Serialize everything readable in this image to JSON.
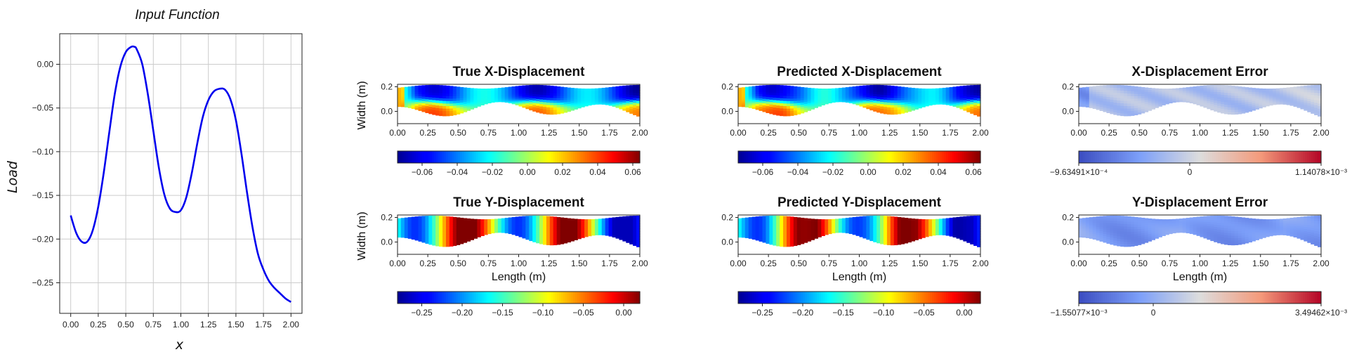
{
  "chart_data": [
    {
      "type": "line",
      "title": "Input Function",
      "xlabel": "x",
      "ylabel": "Load",
      "xlim": [
        -0.1,
        2.1
      ],
      "ylim": [
        -0.285,
        0.035
      ],
      "grid": true,
      "color": "#0000ee",
      "xticks": [
        0.0,
        0.25,
        0.5,
        0.75,
        1.0,
        1.25,
        1.5,
        1.75,
        2.0
      ],
      "xtick_labels": [
        "0.00",
        "0.25",
        "0.50",
        "0.75",
        "1.00",
        "1.25",
        "1.50",
        "1.75",
        "2.00"
      ],
      "yticks": [
        0.0,
        -0.05,
        -0.1,
        -0.15,
        -0.2,
        -0.25
      ],
      "ytick_labels": [
        "0.00",
        "−0.05",
        "−0.10",
        "−0.15",
        "−0.20",
        "−0.25"
      ],
      "series": [
        {
          "x": [
            0.0,
            0.05,
            0.1,
            0.15,
            0.2,
            0.25,
            0.3,
            0.35,
            0.4,
            0.45,
            0.5,
            0.55,
            0.58,
            0.6,
            0.65,
            0.7,
            0.75,
            0.8,
            0.85,
            0.9,
            0.95,
            1.0,
            1.05,
            1.1,
            1.15,
            1.2,
            1.25,
            1.3,
            1.35,
            1.4,
            1.45,
            1.5,
            1.55,
            1.6,
            1.65,
            1.7,
            1.75,
            1.8,
            1.85,
            1.9,
            1.95,
            2.0
          ],
          "y": [
            -0.173,
            -0.193,
            -0.203,
            -0.203,
            -0.19,
            -0.163,
            -0.124,
            -0.078,
            -0.034,
            -0.003,
            0.014,
            0.02,
            0.02,
            0.017,
            0.0,
            -0.034,
            -0.076,
            -0.118,
            -0.149,
            -0.165,
            -0.169,
            -0.167,
            -0.152,
            -0.124,
            -0.09,
            -0.06,
            -0.041,
            -0.031,
            -0.028,
            -0.029,
            -0.04,
            -0.064,
            -0.102,
            -0.146,
            -0.186,
            -0.217,
            -0.235,
            -0.248,
            -0.256,
            -0.262,
            -0.268,
            -0.272
          ]
        }
      ]
    },
    {
      "type": "heatmap",
      "title": "True X-Displacement",
      "ylabel": "Width (m)",
      "xlabel": "",
      "xlim": [
        0,
        2
      ],
      "ylim": [
        -0.1,
        0.22
      ],
      "colormap": "jet",
      "colorbar": {
        "range": [
          -0.074,
          0.064
        ],
        "ticks": [
          -0.06,
          -0.04,
          -0.02,
          0.0,
          0.02,
          0.04,
          0.06
        ],
        "tick_labels": [
          "−0.06",
          "−0.04",
          "−0.02",
          "0.00",
          "0.02",
          "0.04",
          "0.06"
        ]
      }
    },
    {
      "type": "heatmap",
      "title": "Predicted X-Displacement",
      "ylabel": "",
      "xlabel": "",
      "xlim": [
        0,
        2
      ],
      "ylim": [
        -0.1,
        0.22
      ],
      "colormap": "jet",
      "colorbar": {
        "range": [
          -0.074,
          0.064
        ],
        "ticks": [
          -0.06,
          -0.04,
          -0.02,
          0.0,
          0.02,
          0.04,
          0.06
        ],
        "tick_labels": [
          "−0.06",
          "−0.04",
          "−0.02",
          "0.00",
          "0.02",
          "0.04",
          "0.06"
        ]
      }
    },
    {
      "type": "heatmap",
      "title": "X-Displacement Error",
      "ylabel": "",
      "xlabel": "",
      "xlim": [
        0,
        2
      ],
      "ylim": [
        -0.1,
        0.22
      ],
      "colormap": "coolwarm",
      "colorbar": {
        "range": [
          -0.000963491,
          0.00114078
        ],
        "ticks": [
          -0.000963491,
          0,
          0.00114078
        ],
        "tick_labels": [
          "−9.63491×10⁻⁴",
          "0",
          "1.14078×10⁻³"
        ]
      }
    },
    {
      "type": "heatmap",
      "title": "True Y-Displacement",
      "ylabel": "Width (m)",
      "xlabel": "Length (m)",
      "xlim": [
        0,
        2
      ],
      "ylim": [
        -0.1,
        0.22
      ],
      "colormap": "jet",
      "colorbar": {
        "range": [
          -0.28,
          0.02
        ],
        "ticks": [
          -0.25,
          -0.2,
          -0.15,
          -0.1,
          -0.05,
          0.0
        ],
        "tick_labels": [
          "−0.25",
          "−0.20",
          "−0.15",
          "−0.10",
          "−0.05",
          "0.00"
        ]
      }
    },
    {
      "type": "heatmap",
      "title": "Predicted Y-Displacement",
      "ylabel": "",
      "xlabel": "Length (m)",
      "xlim": [
        0,
        2
      ],
      "ylim": [
        -0.1,
        0.22
      ],
      "colormap": "jet",
      "colorbar": {
        "range": [
          -0.28,
          0.02
        ],
        "ticks": [
          -0.25,
          -0.2,
          -0.15,
          -0.1,
          -0.05,
          0.0
        ],
        "tick_labels": [
          "−0.25",
          "−0.20",
          "−0.15",
          "−0.10",
          "−0.05",
          "0.00"
        ]
      }
    },
    {
      "type": "heatmap",
      "title": "Y-Displacement Error",
      "ylabel": "",
      "xlabel": "Length (m)",
      "xlim": [
        0,
        2
      ],
      "ylim": [
        -0.1,
        0.22
      ],
      "colormap": "coolwarm",
      "colorbar": {
        "range": [
          -0.00155077,
          0.00349462
        ],
        "ticks": [
          -0.00155077,
          0,
          0.00349462
        ],
        "tick_labels": [
          "−1.55077×10⁻³",
          "0",
          "3.49462×10⁻³"
        ]
      }
    }
  ],
  "heatmap_axes": {
    "xticks": [
      0.0,
      0.25,
      0.5,
      0.75,
      1.0,
      1.25,
      1.5,
      1.75,
      2.0
    ],
    "xtick_labels": [
      "0.00",
      "0.25",
      "0.50",
      "0.75",
      "1.00",
      "1.25",
      "1.50",
      "1.75",
      "2.00"
    ],
    "yticks": [
      0.2,
      0.0
    ],
    "ytick_labels": [
      "0.2",
      "0.0"
    ]
  },
  "colors": {
    "line": "#0000ee",
    "grid": "#cccccc",
    "axis": "#222222"
  }
}
